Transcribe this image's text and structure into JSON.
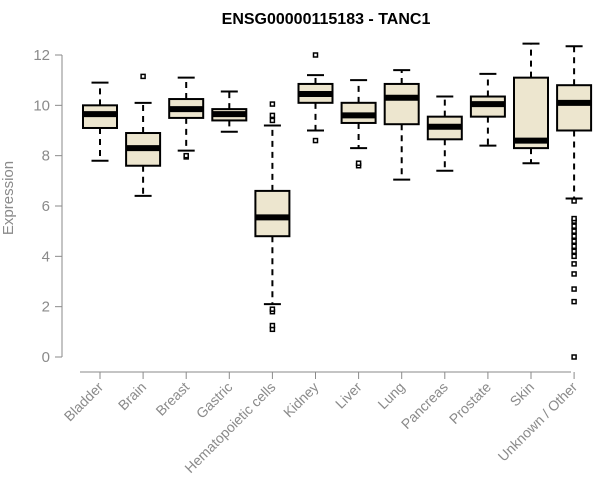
{
  "chart_data": {
    "type": "boxplot",
    "title": "ENSG00000115183 - TANC1",
    "xlabel": "",
    "ylabel": "Expression",
    "ylim": [
      0,
      12
    ],
    "yticks": [
      0,
      2,
      4,
      6,
      8,
      10,
      12
    ],
    "grid": false,
    "box_fill": "#ede6cf",
    "categories": [
      "Bladder",
      "Brain",
      "Breast",
      "Gastric",
      "Hematopoietic cells",
      "Kidney",
      "Liver",
      "Lung",
      "Pancreas",
      "Prostate",
      "Skin",
      "Unknown / Other"
    ],
    "boxes": [
      {
        "name": "Bladder",
        "whisker_low": 7.8,
        "q1": 9.1,
        "median": 9.65,
        "q3": 10.0,
        "whisker_high": 10.9,
        "outliers": []
      },
      {
        "name": "Brain",
        "whisker_low": 6.4,
        "q1": 7.6,
        "median": 8.3,
        "q3": 8.9,
        "whisker_high": 10.1,
        "outliers": [
          11.15
        ]
      },
      {
        "name": "Breast",
        "whisker_low": 8.2,
        "q1": 9.5,
        "median": 9.85,
        "q3": 10.25,
        "whisker_high": 11.1,
        "outliers": [
          7.95,
          8.0
        ]
      },
      {
        "name": "Gastric",
        "whisker_low": 8.95,
        "q1": 9.4,
        "median": 9.65,
        "q3": 9.85,
        "whisker_high": 10.55,
        "outliers": []
      },
      {
        "name": "Hematopoietic cells",
        "whisker_low": 2.1,
        "q1": 4.8,
        "median": 5.55,
        "q3": 6.6,
        "whisker_high": 9.2,
        "outliers": [
          1.1,
          1.25,
          1.8,
          1.9,
          9.4,
          9.6,
          10.05
        ]
      },
      {
        "name": "Kidney",
        "whisker_low": 9.0,
        "q1": 10.1,
        "median": 10.45,
        "q3": 10.85,
        "whisker_high": 11.2,
        "outliers": [
          8.6,
          12.0
        ]
      },
      {
        "name": "Liver",
        "whisker_low": 8.3,
        "q1": 9.3,
        "median": 9.6,
        "q3": 10.1,
        "whisker_high": 11.0,
        "outliers": [
          7.6,
          7.7
        ]
      },
      {
        "name": "Lung",
        "whisker_low": 7.05,
        "q1": 9.25,
        "median": 10.3,
        "q3": 10.85,
        "whisker_high": 11.4,
        "outliers": []
      },
      {
        "name": "Pancreas",
        "whisker_low": 7.4,
        "q1": 8.65,
        "median": 9.15,
        "q3": 9.55,
        "whisker_high": 10.35,
        "outliers": []
      },
      {
        "name": "Prostate",
        "whisker_low": 8.4,
        "q1": 9.55,
        "median": 10.05,
        "q3": 10.35,
        "whisker_high": 11.25,
        "outliers": []
      },
      {
        "name": "Skin",
        "whisker_low": 7.7,
        "q1": 8.3,
        "median": 8.6,
        "q3": 11.1,
        "whisker_high": 12.45,
        "outliers": []
      },
      {
        "name": "Unknown / Other",
        "whisker_low": 6.3,
        "q1": 9.0,
        "median": 10.1,
        "q3": 10.8,
        "whisker_high": 12.35,
        "outliers": [
          0.0,
          2.2,
          2.7,
          3.3,
          3.7,
          4.0,
          4.2,
          4.4,
          4.6,
          4.8,
          5.0,
          5.2,
          5.4,
          5.5,
          6.2
        ]
      }
    ]
  }
}
